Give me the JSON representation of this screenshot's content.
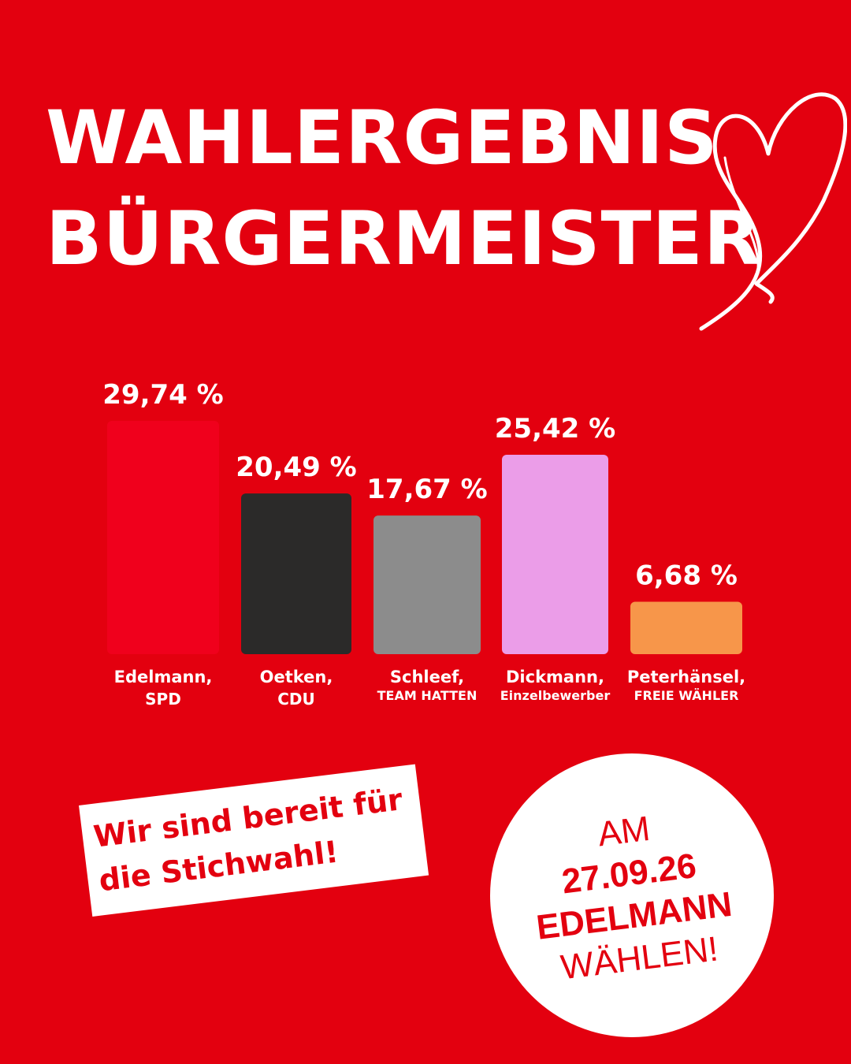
{
  "headline": {
    "line1": "WAHLERGEBNIS",
    "line2": "BÜRGERMEISTER"
  },
  "decoration": {
    "heart": "heart-outline-icon",
    "color": "#ffffff"
  },
  "chart_data": {
    "type": "bar",
    "categories": [
      {
        "name": "Edelmann,",
        "party": "SPD"
      },
      {
        "name": "Oetken,",
        "party": "CDU"
      },
      {
        "name": "Schleef,",
        "party": "TEAM HATTEN"
      },
      {
        "name": "Dickmann,",
        "party": "Einzelbewerber"
      },
      {
        "name": "Peterhänsel,",
        "party": "FREIE WÄHLER"
      }
    ],
    "values": [
      29.74,
      20.49,
      17.67,
      25.42,
      6.68
    ],
    "value_labels": [
      "29,74 %",
      "20,49 %",
      "17,67 %",
      "25,42 %",
      "6,68 %"
    ],
    "colors": [
      "#f0001c",
      "#2b2a29",
      "#8c8c8c",
      "#eb9de8",
      "#f7964a"
    ],
    "ylim": [
      0,
      29.74
    ],
    "grid": false,
    "legend": "none"
  },
  "banner": {
    "line1": "Wir sind bereit für",
    "line2": "die Stichwahl!"
  },
  "circle": {
    "line1": "AM",
    "line2": "27.09.26",
    "line3": "EDELMANN",
    "line4": "WÄHLEN!"
  },
  "colors": {
    "background": "#e3000f",
    "text": "#ffffff",
    "accent_red": "#e3000f"
  }
}
